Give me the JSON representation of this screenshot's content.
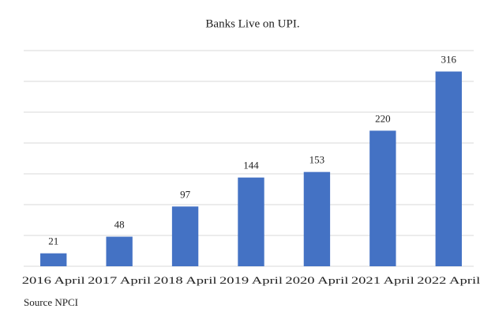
{
  "chart_data": {
    "type": "bar",
    "title": "Banks Live on UPI.",
    "categories": [
      "2016 April",
      "2017 April",
      "2018 April",
      "2019 April",
      "2020 April",
      "2021 April",
      "2022 April"
    ],
    "values": [
      21,
      48,
      97,
      144,
      153,
      220,
      316
    ],
    "color": "#4472c4",
    "ylim": [
      0,
      350
    ],
    "yticks": [
      0,
      50,
      100,
      150,
      200,
      250,
      300,
      350
    ],
    "grid": true,
    "source": "Source NPCI"
  }
}
